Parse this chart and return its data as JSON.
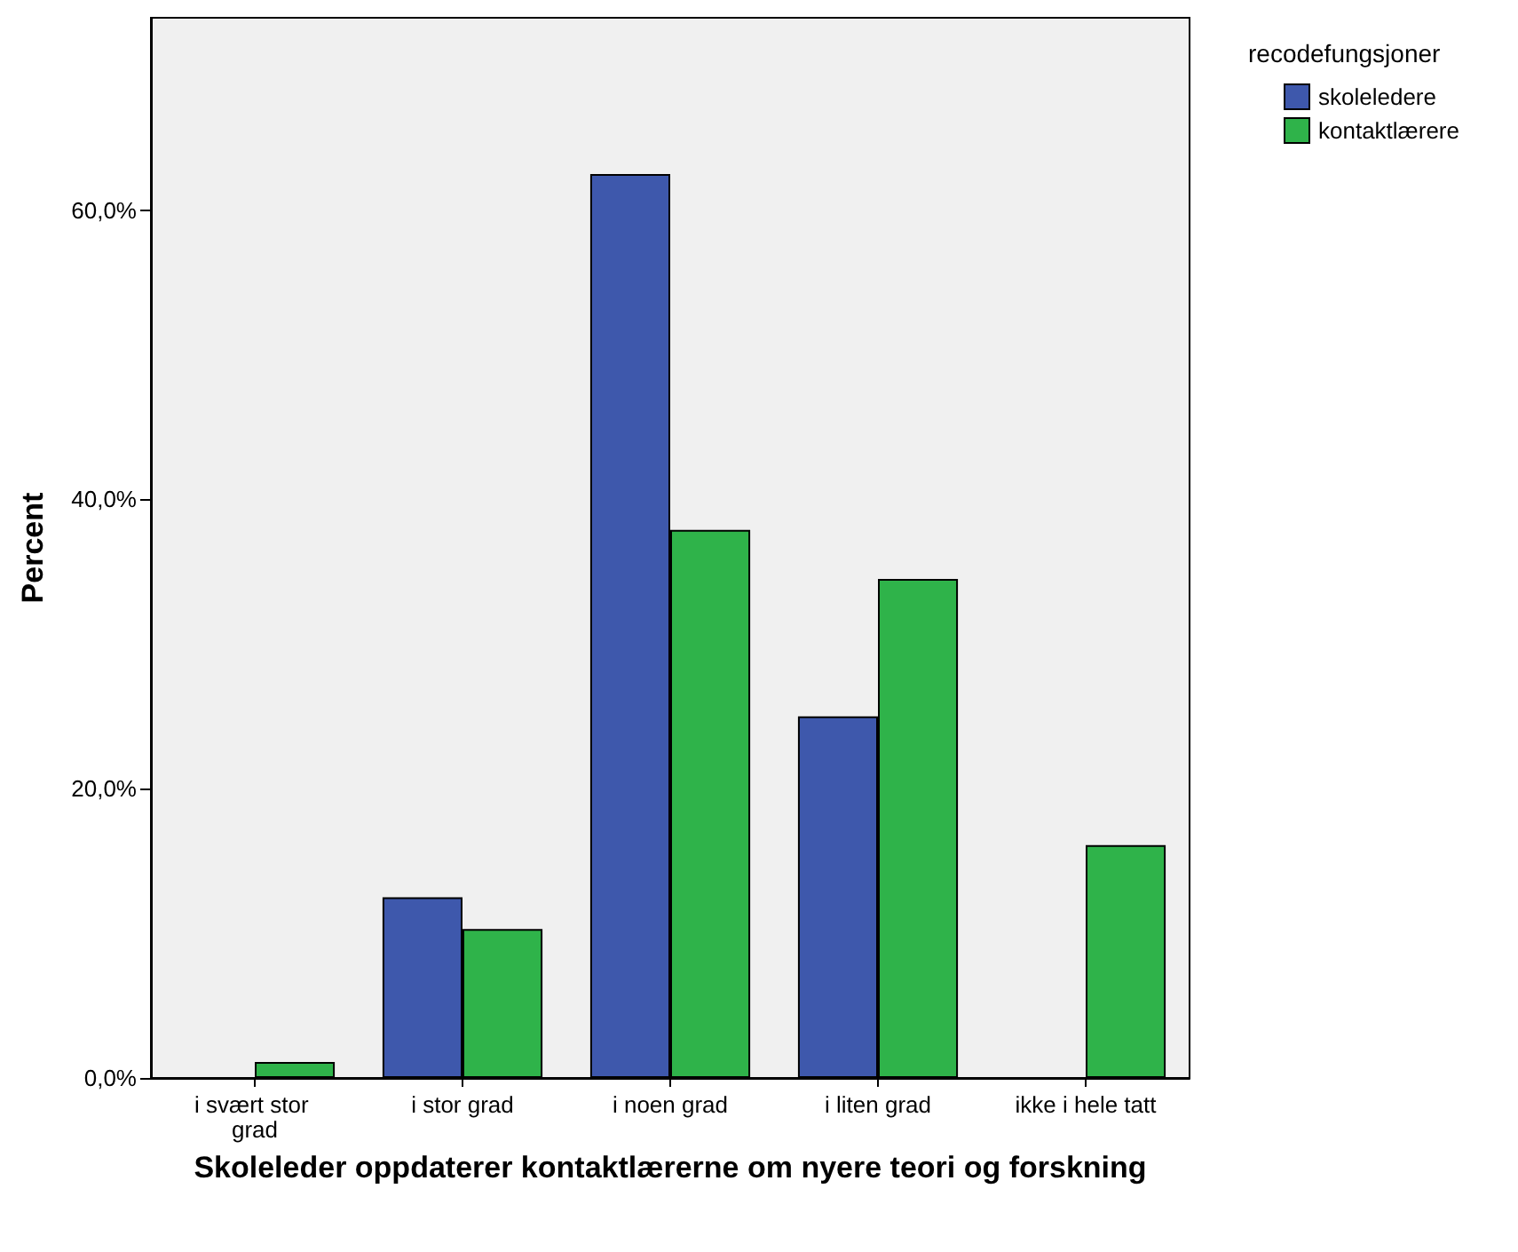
{
  "chart_data": {
    "type": "bar",
    "xlabel": "Skoleleder oppdaterer kontaktlærerne om nyere teori og forskning",
    "ylabel": "Percent",
    "legend_title": "recodefungsjoner",
    "categories": [
      "i svært stor grad",
      "i stor grad",
      "i noen grad",
      "i liten grad",
      "ikke i hele tatt"
    ],
    "series": [
      {
        "name": "skoleledere",
        "color": "#3e58ac",
        "values": [
          0,
          12.5,
          62.5,
          25.0,
          0
        ]
      },
      {
        "name": "kontaktlærere",
        "color": "#2fb34a",
        "values": [
          1.1,
          10.3,
          37.9,
          34.5,
          16.1
        ]
      }
    ],
    "ylim": [
      0,
      73.3
    ],
    "yticks": [
      {
        "value": 0,
        "label": "0,0%"
      },
      {
        "value": 20,
        "label": "20,0%"
      },
      {
        "value": 40,
        "label": "40,0%"
      },
      {
        "value": 60,
        "label": "60,0%"
      }
    ],
    "grid": false,
    "legend": "top right"
  }
}
